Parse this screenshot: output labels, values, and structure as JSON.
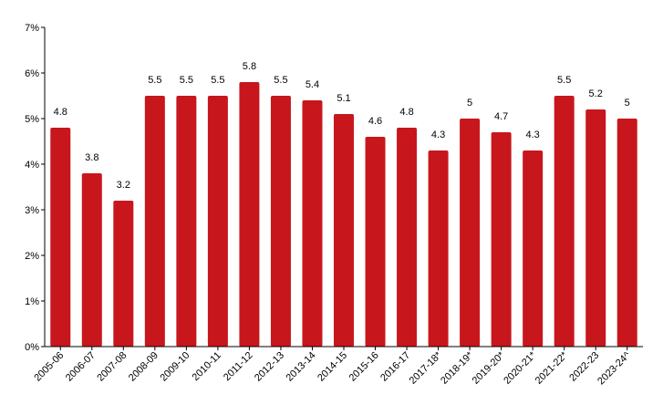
{
  "chart_data": {
    "type": "bar",
    "title": "",
    "xlabel": "",
    "ylabel": "",
    "ylim": [
      0,
      7
    ],
    "y_ticks": [
      0,
      1,
      2,
      3,
      4,
      5,
      6,
      7
    ],
    "y_tick_labels": [
      "0%",
      "1%",
      "2%",
      "3%",
      "4%",
      "5%",
      "6%",
      "7%"
    ],
    "grid": false,
    "legend": "none",
    "bar_color": "#c8161d",
    "categories": [
      "2005-06",
      "2006-07",
      "2007-08",
      "2008-09",
      "2009-10",
      "2010-11",
      "2011-12",
      "2012-13",
      "2013-14",
      "2014-15",
      "2015-16",
      "2016-17",
      "2017-18*",
      "2018-19*",
      "2019-20*",
      "2020-21*",
      "2021-22*",
      "2022-23",
      "2023-24^"
    ],
    "values": [
      4.8,
      3.8,
      3.2,
      5.5,
      5.5,
      5.5,
      5.8,
      5.5,
      5.4,
      5.1,
      4.6,
      4.8,
      4.3,
      5,
      4.7,
      4.3,
      5.5,
      5.2,
      5
    ],
    "data_labels": [
      "4.8",
      "3.8",
      "3.2",
      "5.5",
      "5.5",
      "5.5",
      "5.8",
      "5.5",
      "5.4",
      "5.1",
      "4.6",
      "4.8",
      "4.3",
      "5",
      "4.7",
      "4.3",
      "5.5",
      "5.2",
      "5"
    ]
  }
}
